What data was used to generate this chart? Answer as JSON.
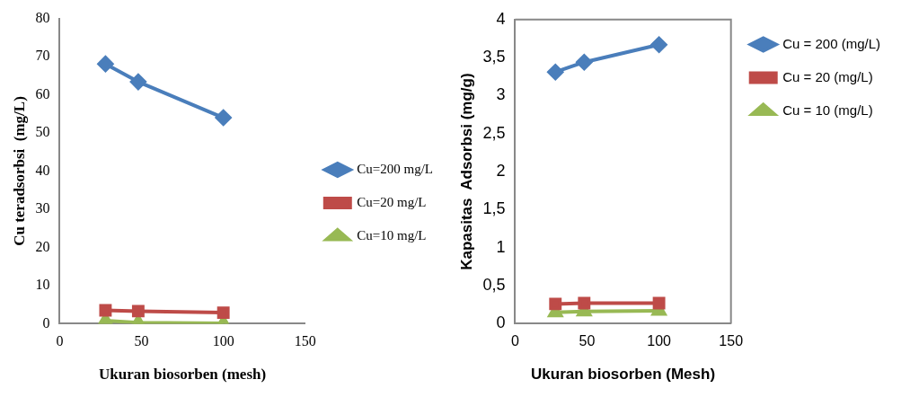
{
  "chart_data": [
    {
      "type": "line",
      "xlabel": "Ukuran biosorben (mesh)",
      "ylabel": "Cu teradsorbsi  (mg/L)",
      "x": [
        28,
        48,
        100
      ],
      "xlim": [
        0,
        150
      ],
      "xticks": [
        0,
        50,
        100,
        150
      ],
      "ylim": [
        0,
        80
      ],
      "yticks": [
        0,
        10,
        20,
        30,
        40,
        50,
        60,
        70,
        80
      ],
      "grid": false,
      "legend": "right",
      "series": [
        {
          "name": "Cu=200 mg/L",
          "color": "#4a7ebb",
          "marker": "diamond",
          "values": [
            68.1,
            63.4,
            54
          ]
        },
        {
          "name": "Cu=20 mg/L",
          "color": "#be4b48",
          "marker": "square",
          "values": [
            3.5,
            3.3,
            2.9
          ]
        },
        {
          "name": "Cu=10 mg/L",
          "color": "#98b954",
          "marker": "triangle",
          "values": [
            0.8,
            0.3,
            0.1
          ]
        }
      ]
    },
    {
      "type": "line",
      "xlabel": "Ukuran biosorben (Mesh)",
      "ylabel": "Kapasitas  Adsorbsi (mg/g)",
      "x": [
        28,
        48,
        100
      ],
      "xlim": [
        0,
        150
      ],
      "xticks": [
        0,
        50,
        100,
        150
      ],
      "ylim": [
        0,
        4
      ],
      "yticks": [
        0,
        {
          "value": 0.5,
          "label": "0,5"
        },
        1,
        {
          "value": 1.5,
          "label": "1,5"
        },
        2,
        {
          "value": 2.5,
          "label": "2,5"
        },
        3,
        {
          "value": 3.5,
          "label": "3,5"
        },
        4
      ],
      "grid": false,
      "legend": "top right",
      "series": [
        {
          "name": "Cu = 200 (mg/L)",
          "color": "#4a7ebb",
          "marker": "diamond",
          "values": [
            3.31,
            3.44,
            3.67
          ]
        },
        {
          "name": "Cu = 20 (mg/L)",
          "color": "#be4b48",
          "marker": "square",
          "values": [
            0.26,
            0.27,
            0.27
          ]
        },
        {
          "name": "Cu = 10 (mg/L)",
          "color": "#98b954",
          "marker": "triangle",
          "values": [
            0.15,
            0.16,
            0.17
          ]
        }
      ]
    }
  ]
}
